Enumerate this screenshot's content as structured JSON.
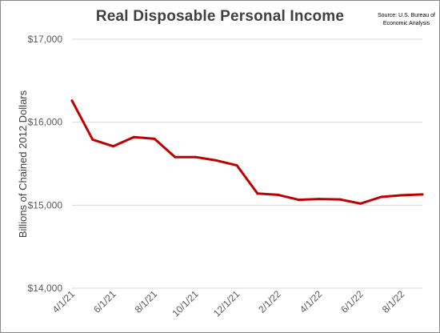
{
  "chart_data": {
    "type": "line",
    "title": "Real Disposable Personal Income",
    "source": "Source: U.S. Bureau of Economic Analysis",
    "xlabel": "",
    "ylabel": "Billions of Chained 2012 Dollars",
    "ylim": [
      14000,
      17000
    ],
    "y_ticks": [
      "$14,000",
      "$15,000",
      "$16,000",
      "$17,000"
    ],
    "x": [
      "4/1/21",
      "5/1/21",
      "6/1/21",
      "7/1/21",
      "8/1/21",
      "9/1/21",
      "10/1/21",
      "11/1/21",
      "12/1/21",
      "1/1/22",
      "2/1/22",
      "3/1/22",
      "4/1/22",
      "5/1/22",
      "6/1/22",
      "7/1/22",
      "8/1/22",
      "9/1/22"
    ],
    "x_tick_labels": [
      "4/1/21",
      "6/1/21",
      "8/1/21",
      "10/1/21",
      "12/1/21",
      "2/1/22",
      "4/1/22",
      "6/1/22",
      "8/1/22"
    ],
    "series": [
      {
        "values": [
          16260,
          15790,
          15710,
          15820,
          15800,
          15580,
          15580,
          15540,
          15480,
          15140,
          15125,
          15065,
          15075,
          15070,
          15020,
          15100,
          15120,
          15130
        ],
        "color": "#c00000"
      }
    ],
    "grid": true,
    "legend": "none"
  }
}
